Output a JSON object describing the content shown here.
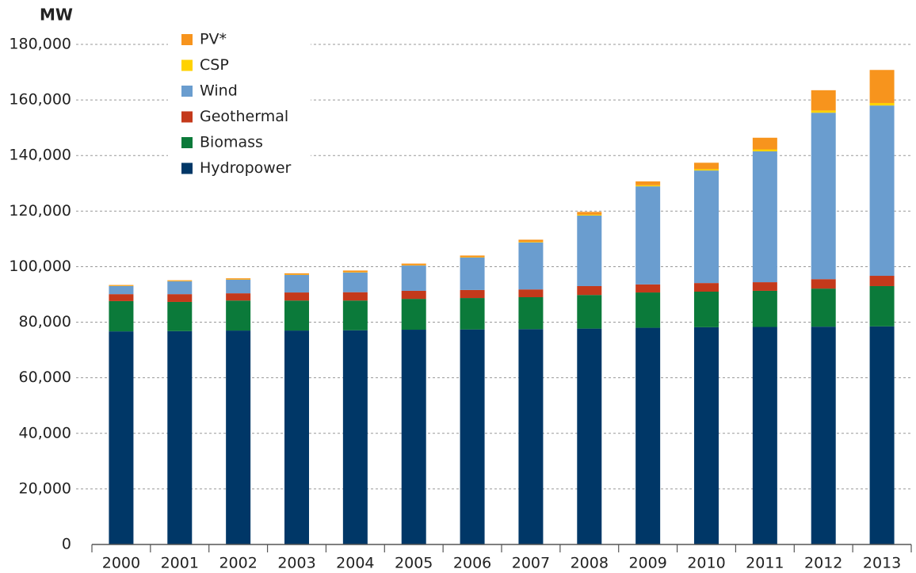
{
  "chart_data": {
    "type": "stacked_bar",
    "y_label": "MW",
    "categories": [
      "2000",
      "2001",
      "2002",
      "2003",
      "2004",
      "2005",
      "2006",
      "2007",
      "2008",
      "2009",
      "2010",
      "2011",
      "2012",
      "2013"
    ],
    "series": [
      {
        "name": "Hydropower",
        "color": "#003767",
        "values": [
          76700,
          76800,
          77000,
          77000,
          77100,
          77300,
          77400,
          77500,
          77700,
          78000,
          78200,
          78300,
          78400,
          78500
        ]
      },
      {
        "name": "Biomass",
        "color": "#0b7a3a",
        "values": [
          10900,
          10500,
          10800,
          10800,
          10700,
          11100,
          11300,
          11500,
          12100,
          12700,
          12800,
          13000,
          13700,
          14500
        ]
      },
      {
        "name": "Geothermal",
        "color": "#c4391b",
        "values": [
          2500,
          2800,
          2600,
          2900,
          3000,
          2900,
          2900,
          2800,
          3200,
          2900,
          3100,
          3100,
          3400,
          3700
        ]
      },
      {
        "name": "Wind",
        "color": "#6a9dcf",
        "values": [
          2900,
          4600,
          4900,
          6300,
          7100,
          9100,
          11700,
          16900,
          25400,
          35300,
          40500,
          47100,
          59900,
          61300
        ]
      },
      {
        "name": "CSP",
        "color": "#ffd200",
        "values": [
          100,
          100,
          100,
          100,
          100,
          100,
          100,
          200,
          300,
          400,
          500,
          700,
          800,
          900
        ]
      },
      {
        "name": "PV*",
        "color": "#f7941d",
        "values": [
          300,
          300,
          400,
          500,
          600,
          600,
          600,
          800,
          1000,
          1400,
          2300,
          4200,
          7300,
          11900
        ]
      }
    ],
    "ylim": [
      0,
      180000
    ],
    "yticks": [
      0,
      {
        "value": 20000,
        "label": "20,000"
      },
      {
        "value": 40000,
        "label": "40,000"
      },
      {
        "value": 60000,
        "label": "60,000"
      },
      {
        "value": 80000,
        "label": "80,000"
      },
      {
        "value": 100000,
        "label": "100,000"
      },
      {
        "value": 120000,
        "label": "120,000"
      },
      {
        "value": 140000,
        "label": "140,000"
      },
      {
        "value": 160000,
        "label": "160,000"
      },
      {
        "value": 180000,
        "label": "180,000"
      }
    ],
    "grid": true,
    "legend": "top-left"
  }
}
